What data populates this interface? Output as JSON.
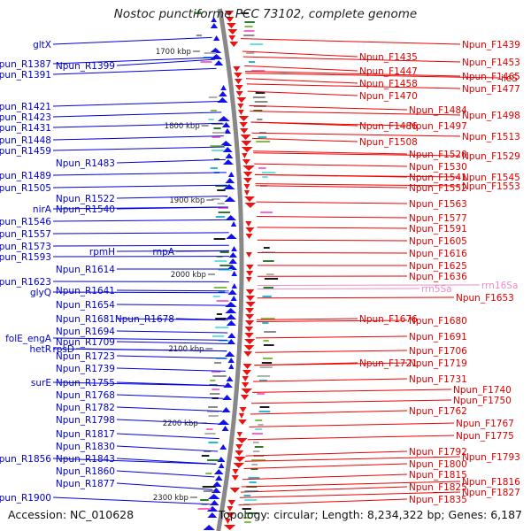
{
  "title": "Nostoc punctiforme PCC 73102, complete genome",
  "accession": "Accession: NC_010628",
  "summary": "Topology: circular; Length: 8,234,322 bp; Genes: 6,187",
  "ticks": [
    {
      "label": "1700 kbp",
      "row": 0.7
    },
    {
      "label": "1800 kbp",
      "row": 4.9
    },
    {
      "label": "1900 kbp",
      "row": 9.1
    },
    {
      "label": "2000 kbp",
      "row": 13.3
    },
    {
      "label": "2100 kbp",
      "row": 17.5
    },
    {
      "label": "2200 kbp",
      "row": 21.7
    },
    {
      "label": "2300 kbp",
      "row": 25.9
    }
  ],
  "left_labels": [
    {
      "text": "gltX",
      "row": 0.3
    },
    {
      "text": "Npun_R1387",
      "row": 1.4
    },
    {
      "text": "Npun_R1399",
      "row": 1.5,
      "col": 2
    },
    {
      "text": "Npun_R1391",
      "row": 2.0
    },
    {
      "text": "Npun_R1421",
      "row": 3.8
    },
    {
      "text": "Npun_R1423",
      "row": 4.4
    },
    {
      "text": "Npun_R1431",
      "row": 5.0
    },
    {
      "text": "Npun_R1448",
      "row": 5.7
    },
    {
      "text": "Npun_R1459",
      "row": 6.3
    },
    {
      "text": "Npun_R1483",
      "row": 7.0,
      "col": 2
    },
    {
      "text": "Npun_R1489",
      "row": 7.7
    },
    {
      "text": "Npun_R1505",
      "row": 8.4
    },
    {
      "text": "Npun_R1522",
      "row": 9.0,
      "col": 2
    },
    {
      "text": "nirA",
      "row": 9.6
    },
    {
      "text": "Npun_R1540",
      "row": 9.6,
      "col": 2
    },
    {
      "text": "Npun_R1546",
      "row": 10.3
    },
    {
      "text": "Npun_R1557",
      "row": 11.0
    },
    {
      "text": "Npun_R1573",
      "row": 11.7
    },
    {
      "text": "rpmH",
      "row": 12.0,
      "col": 2
    },
    {
      "text": "rnpA",
      "row": 12.0,
      "col": 3
    },
    {
      "text": "Npun_R1593",
      "row": 12.3
    },
    {
      "text": "Npun_R1614",
      "row": 13.0,
      "col": 2
    },
    {
      "text": "Npun_R1623",
      "row": 13.7
    },
    {
      "text": "glyQ",
      "row": 14.3
    },
    {
      "text": "Npun_R1641",
      "row": 14.2,
      "col": 2
    },
    {
      "text": "Npun_R1654",
      "row": 15.0,
      "col": 2
    },
    {
      "text": "Npun_R1681",
      "row": 15.8,
      "col": 2
    },
    {
      "text": "Npun_R1678",
      "row": 15.8,
      "col": 3
    },
    {
      "text": "Npun_R1694",
      "row": 16.5,
      "col": 2
    },
    {
      "text": "folE_engA",
      "row": 16.9
    },
    {
      "text": "Npun_R1709",
      "row": 17.1,
      "col": 2
    },
    {
      "text": "hetR",
      "row": 17.5
    },
    {
      "text": "rpsD",
      "row": 17.5,
      "col": 1.5
    },
    {
      "text": "Npun_R1723",
      "row": 17.9,
      "col": 2
    },
    {
      "text": "Npun_R1739",
      "row": 18.6,
      "col": 2
    },
    {
      "text": "surE",
      "row": 19.4
    },
    {
      "text": "Npun_R1755",
      "row": 19.4,
      "col": 2
    },
    {
      "text": "Npun_R1768",
      "row": 20.1,
      "col": 2
    },
    {
      "text": "Npun_R1782",
      "row": 20.8,
      "col": 2
    },
    {
      "text": "Npun_R1798",
      "row": 21.5,
      "col": 2
    },
    {
      "text": "Npun_R1817",
      "row": 22.3,
      "col": 2
    },
    {
      "text": "Npun_R1830",
      "row": 23.0,
      "col": 2
    },
    {
      "text": "Npun_R1856",
      "row": 23.7
    },
    {
      "text": "Npun_R1843",
      "row": 23.7,
      "col": 2
    },
    {
      "text": "Npun_R1860",
      "row": 24.4,
      "col": 2
    },
    {
      "text": "Npun_R1877",
      "row": 25.1,
      "col": 2
    },
    {
      "text": "Npun_R1900",
      "row": 25.9
    }
  ],
  "right_labels": [
    {
      "text": "Npun_F1439",
      "row": 0.3,
      "col": 2
    },
    {
      "text": "Npun_F1435",
      "row": 1.0
    },
    {
      "text": "Npun_F1453",
      "row": 1.3,
      "col": 2
    },
    {
      "text": "Npun_F1447",
      "row": 1.8
    },
    {
      "text": "Npun_F1465",
      "row": 2.1,
      "col": 2
    },
    {
      "text": "ileS",
      "row": 2.2,
      "col": 3
    },
    {
      "text": "Npun_F1458",
      "row": 2.5
    },
    {
      "text": "Npun_F1477",
      "row": 2.8,
      "col": 2
    },
    {
      "text": "Npun_F1470",
      "row": 3.2
    },
    {
      "text": "Npun_F1484",
      "row": 4.0,
      "col": 1.5
    },
    {
      "text": "Npun_F1498",
      "row": 4.3,
      "col": 2
    },
    {
      "text": "Npun_F1486",
      "row": 4.9
    },
    {
      "text": "Npun_F1497",
      "row": 4.9,
      "col": 1.5
    },
    {
      "text": "Npun_F1513",
      "row": 5.5,
      "col": 2
    },
    {
      "text": "Npun_F1508",
      "row": 5.8
    },
    {
      "text": "Npun_F1520",
      "row": 6.5,
      "col": 1.5
    },
    {
      "text": "Npun_F1529",
      "row": 6.6,
      "col": 2
    },
    {
      "text": "Npun_F1530",
      "row": 7.2,
      "col": 1.5
    },
    {
      "text": "Npun_F1541",
      "row": 7.8,
      "col": 1.5
    },
    {
      "text": "Npun_F1545",
      "row": 7.8,
      "col": 2
    },
    {
      "text": "Npun_F1552",
      "row": 8.4,
      "col": 1.5
    },
    {
      "text": "Npun_F1553",
      "row": 8.3,
      "col": 2
    },
    {
      "text": "Npun_F1563",
      "row": 9.3,
      "col": 1.5
    },
    {
      "text": "Npun_F1577",
      "row": 10.1,
      "col": 1.5
    },
    {
      "text": "Npun_F1591",
      "row": 10.7,
      "col": 1.5
    },
    {
      "text": "Npun_F1605",
      "row": 11.4,
      "col": 1.5
    },
    {
      "text": "Npun_F1616",
      "row": 12.1,
      "col": 1.5
    },
    {
      "text": "Npun_F1625",
      "row": 12.8,
      "col": 1.5
    },
    {
      "text": "Npun_F1636",
      "row": 13.4,
      "col": 1.5
    },
    {
      "text": "rrn5Sa",
      "row": 14.1,
      "col": 1.2,
      "rrna": true
    },
    {
      "text": "rrn16Sa",
      "row": 13.9,
      "col": 2.1,
      "rrna": true
    },
    {
      "text": "Npun_F1653",
      "row": 14.6,
      "col": 1.7
    },
    {
      "text": "Npun_F1676",
      "row": 15.8
    },
    {
      "text": "Npun_F1680",
      "row": 15.9,
      "col": 1.5
    },
    {
      "text": "Npun_F1691",
      "row": 16.8,
      "col": 1.5
    },
    {
      "text": "Npun_F1706",
      "row": 17.6,
      "col": 1.5
    },
    {
      "text": "Npun_F1721",
      "row": 18.3
    },
    {
      "text": "Npun_F1719",
      "row": 18.3,
      "col": 1.5
    },
    {
      "text": "Npun_F1731",
      "row": 19.2,
      "col": 1.5
    },
    {
      "text": "Npun_F1740",
      "row": 19.8,
      "col": 1.9
    },
    {
      "text": "Npun_F1750",
      "row": 20.4,
      "col": 1.9
    },
    {
      "text": "Npun_F1762",
      "row": 21.0,
      "col": 1.5
    },
    {
      "text": "Npun_F1767",
      "row": 21.7,
      "col": 1.7
    },
    {
      "text": "Npun_F1775",
      "row": 22.4,
      "col": 1.7
    },
    {
      "text": "Npun_F1792",
      "row": 23.3,
      "col": 1.5
    },
    {
      "text": "Npun_F1793",
      "row": 23.6,
      "col": 2
    },
    {
      "text": "Npun_F1800",
      "row": 24.0,
      "col": 1.5
    },
    {
      "text": "Npun_F1815",
      "row": 24.6,
      "col": 1.5
    },
    {
      "text": "Npun_F1816",
      "row": 25.0,
      "col": 2
    },
    {
      "text": "Npun_F1825",
      "row": 25.3,
      "col": 1.5
    },
    {
      "text": "Npun_F1827",
      "row": 25.6,
      "col": 2
    },
    {
      "text": "Npun_F1835",
      "row": 26.0,
      "col": 1.5
    }
  ]
}
